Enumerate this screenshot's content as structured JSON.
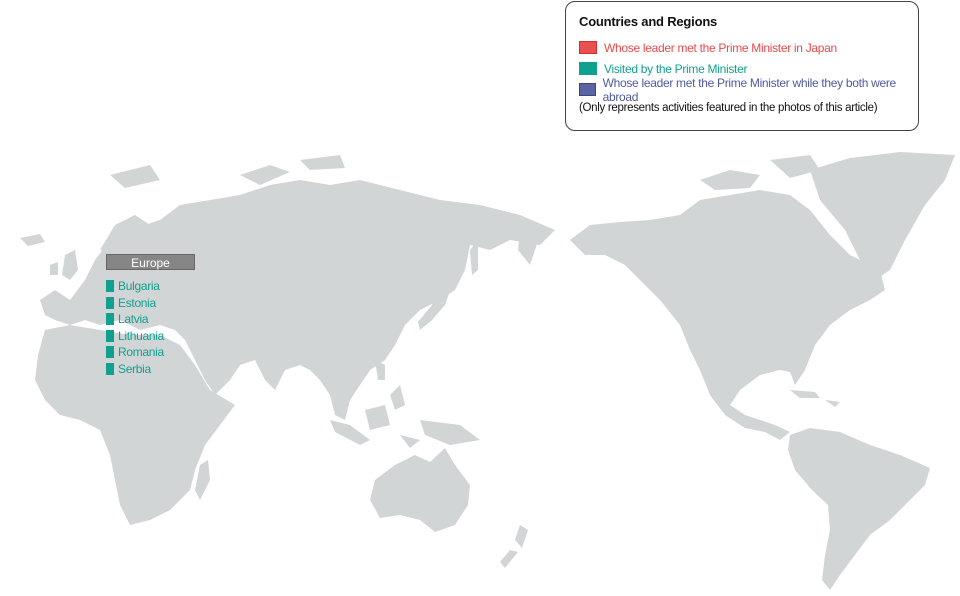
{
  "legend": {
    "title": "Countries and Regions",
    "items": [
      {
        "label": "Whose leader met the Prime Minister in Japan",
        "color": "#e95050"
      },
      {
        "label": "Visited by the Prime Minister",
        "color": "#10a08f"
      },
      {
        "label": "Whose leader met the Prime Minister while they both were abroad",
        "color": "#5b64a2"
      }
    ],
    "note": "(Only represents activities featured in the photos of this article)"
  },
  "regions": [
    {
      "name": "Europe",
      "category": "Visited by the Prime Minister",
      "countries": [
        "Bulgaria",
        "Estonia",
        "Latvia",
        "Lithuania",
        "Romania",
        "Serbia"
      ]
    }
  ],
  "colors": {
    "land": "#d1d5d6",
    "ocean": "#ffffff",
    "visited": "#10a08f",
    "region_label_bg": "#868686"
  }
}
